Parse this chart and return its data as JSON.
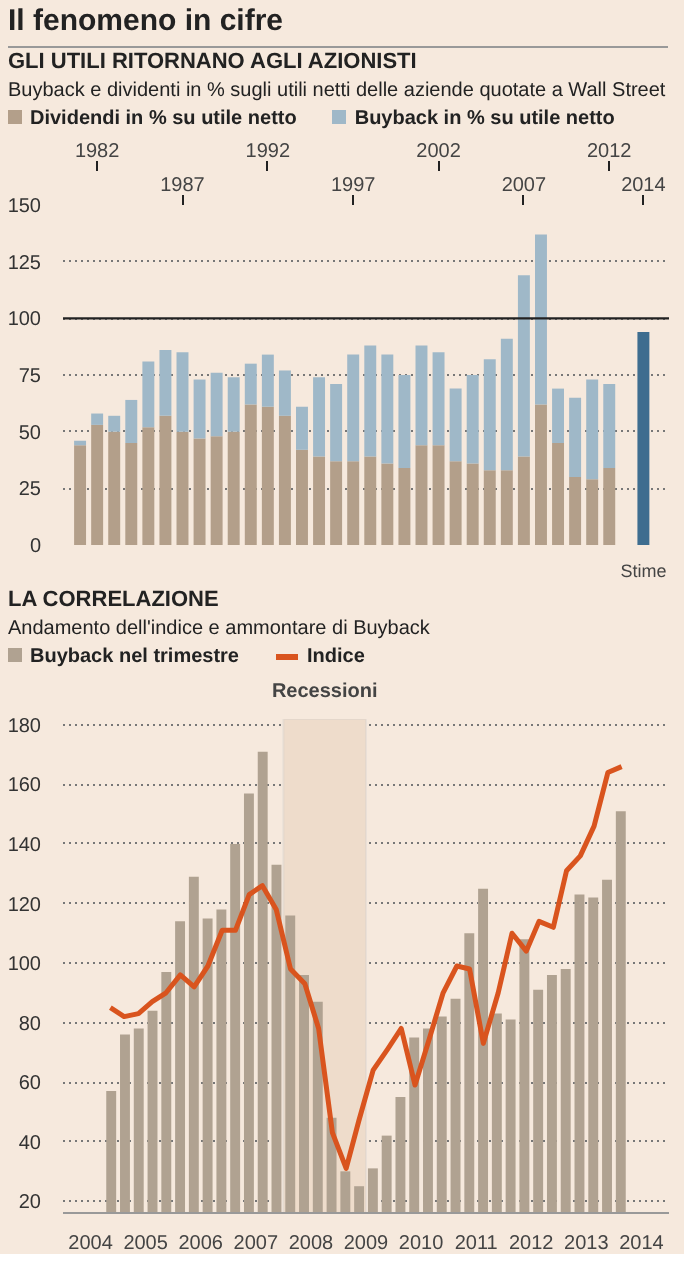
{
  "chart_data": [
    {
      "type": "bar",
      "stacked": true,
      "title": "GLI UTILI RITORNANO AGLI AZIONISTI",
      "subtitle": "Buyback e dividenti in % sugli utili netti delle aziende quotate a Wall Street",
      "annotations": [
        "Il fenomeno in cifre",
        {
          "text": "Stime",
          "x": 2014,
          "y": 0
        }
      ],
      "x": [
        1981,
        1982,
        1983,
        1984,
        1985,
        1986,
        1987,
        1988,
        1989,
        1990,
        1991,
        1992,
        1993,
        1994,
        1995,
        1996,
        1997,
        1998,
        1999,
        2000,
        2001,
        2002,
        2003,
        2004,
        2005,
        2006,
        2007,
        2008,
        2009,
        2010,
        2011,
        2012,
        2014
      ],
      "series": [
        {
          "name": "Dividendi in % su utile netto",
          "color": "#b39f8a",
          "values": [
            44,
            53,
            50,
            45,
            52,
            57,
            50,
            47,
            48,
            50,
            62,
            61,
            57,
            42,
            39,
            37,
            37,
            39,
            36,
            34,
            44,
            44,
            37,
            36,
            33,
            33,
            39,
            62,
            45,
            30,
            29,
            34,
            null
          ]
        },
        {
          "name": "Buyback in % su utile netto",
          "color": "#9fb8c8",
          "values": [
            2,
            5,
            7,
            19,
            29,
            29,
            35,
            26,
            28,
            24,
            18,
            23,
            20,
            19,
            35,
            34,
            47,
            49,
            48,
            41,
            44,
            41,
            32,
            39,
            49,
            58,
            80,
            75,
            24,
            35,
            44,
            37,
            null
          ]
        },
        {
          "color": "#3e6d8f",
          "values": [
            null,
            null,
            null,
            null,
            null,
            null,
            null,
            null,
            null,
            null,
            null,
            null,
            null,
            null,
            null,
            null,
            null,
            null,
            null,
            null,
            null,
            null,
            null,
            null,
            null,
            null,
            null,
            null,
            null,
            null,
            null,
            null,
            94
          ]
        }
      ],
      "xlim": [
        1980,
        2015.5
      ],
      "xticks": [
        1982,
        1992,
        2002,
        2012
      ],
      "x2lim": [
        1980,
        2015.5
      ],
      "x2ticks": [
        1987,
        1997,
        2007,
        2014
      ],
      "ylim": [
        0,
        150
      ],
      "yticks": [
        0,
        25,
        50,
        75,
        100,
        125,
        150
      ],
      "ref_lines": [
        {
          "axis": "y",
          "value": 100,
          "color": "#222222"
        }
      ],
      "grid": "y",
      "legend": "top"
    },
    {
      "type": "bar",
      "title": "LA CORRELAZIONE",
      "subtitle": "Andamento dell'indice e ammontare di Buyback",
      "series": [
        {
          "type": "bar",
          "name": "Buyback nel trimestre",
          "color": "#b0a291",
          "x": [
            2004.875,
            2005.125,
            2005.375,
            2005.625,
            2005.875,
            2006.125,
            2006.375,
            2006.625,
            2006.875,
            2007.125,
            2007.375,
            2007.625,
            2007.875,
            2008.125,
            2008.375,
            2008.625,
            2008.875,
            2009.125,
            2009.375,
            2009.625,
            2009.875,
            2010.125,
            2010.375,
            2010.625,
            2010.875,
            2011.125,
            2011.375,
            2011.625,
            2011.875,
            2012.125,
            2012.375,
            2012.625,
            2012.875,
            2013.125,
            2013.375,
            2013.625,
            2013.875,
            2014.125
          ],
          "values": [
            57,
            76,
            78,
            84,
            97,
            114,
            129,
            115,
            118,
            140,
            157,
            171,
            133,
            116,
            96,
            87,
            48,
            30,
            25,
            31,
            42,
            55,
            75,
            78,
            82,
            88,
            110,
            125,
            83,
            81,
            108,
            91,
            96,
            98,
            123,
            122,
            128,
            151
          ]
        },
        {
          "type": "line",
          "name": "Indice",
          "color": "#d9541e",
          "x": [
            2004.86,
            2005.11,
            2005.37,
            2005.62,
            2005.87,
            2006.13,
            2006.38,
            2006.63,
            2006.89,
            2007.13,
            2007.38,
            2007.62,
            2007.87,
            2008.13,
            2008.39,
            2008.64,
            2008.89,
            2009.14,
            2009.37,
            2009.63,
            2009.89,
            2010.14,
            2010.39,
            2010.64,
            2010.9,
            2011.15,
            2011.38,
            2011.63,
            2011.9,
            2012.15,
            2012.41,
            2012.64,
            2012.9,
            2013.14,
            2013.39,
            2013.64,
            2013.89,
            2014.14
          ],
          "values": [
            85,
            82,
            83,
            87,
            90,
            96,
            92,
            99,
            111,
            111,
            123,
            126,
            118,
            98,
            93,
            78,
            43,
            31,
            47,
            64,
            71,
            78,
            59,
            74,
            90,
            99,
            98,
            73,
            90,
            110,
            104,
            114,
            112,
            131,
            136,
            146,
            164,
            166
          ]
        }
      ],
      "xlim": [
        2004,
        2015
      ],
      "xticks": [
        {
          "value": 2004.5,
          "label": "2004"
        },
        {
          "value": 2005.5,
          "label": "2005"
        },
        {
          "value": 2006.5,
          "label": "2006"
        },
        {
          "value": 2007.5,
          "label": "2007"
        },
        {
          "value": 2008.5,
          "label": "2008"
        },
        {
          "value": 2009.5,
          "label": "2009"
        },
        {
          "value": 2010.5,
          "label": "2010"
        },
        {
          "value": 2011.5,
          "label": "2011"
        },
        {
          "value": 2012.5,
          "label": "2012"
        },
        {
          "value": 2013.5,
          "label": "2013"
        },
        {
          "value": 2014.5,
          "label": "2014"
        }
      ],
      "ylim": [
        16,
        182
      ],
      "yticks": [
        20,
        40,
        60,
        80,
        100,
        120,
        140,
        160,
        180
      ],
      "bands": [
        {
          "axis": "x",
          "from": 2008,
          "to": 2009.5,
          "label": "Recessioni",
          "color": "#eedccb"
        }
      ],
      "grid": "y",
      "legend": "top"
    }
  ]
}
